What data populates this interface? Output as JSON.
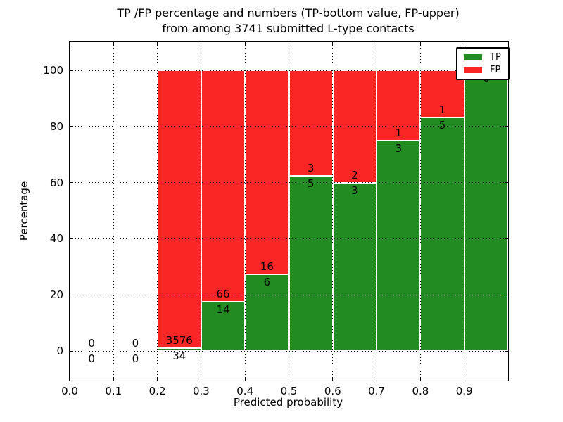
{
  "figure": {
    "title_line1": "TP /FP percentage and numbers (TP-bottom value, FP-upper)",
    "title_line2": "from among 3741 submitted L-type contacts",
    "background_color": "#ffffff"
  },
  "legend": {
    "position": "upper-right",
    "items": [
      {
        "label": "TP",
        "color": "#228b22"
      },
      {
        "label": "FP",
        "color": "#fa2525"
      }
    ]
  },
  "chart_data": {
    "type": "bar",
    "variant": "stacked-percentage",
    "title": "TP /FP percentage and numbers (TP-bottom value, FP-upper) from among 3741 submitted L-type contacts",
    "xlabel": "Predicted probability",
    "ylabel": "Percentage",
    "x_tick_labels": [
      "0.0",
      "0.1",
      "0.2",
      "0.3",
      "0.4",
      "0.5",
      "0.6",
      "0.7",
      "0.8",
      "0.9"
    ],
    "y_tick_values": [
      0,
      20,
      40,
      60,
      80,
      100
    ],
    "xlim": [
      0.0,
      1.0
    ],
    "ylim": [
      -11,
      110
    ],
    "grid": true,
    "grid_style": "dotted",
    "bar_edge_color": "#ffffff",
    "bin_width": 0.1,
    "total_submitted": 3741,
    "categories": [
      "0.0-0.1",
      "0.1-0.2",
      "0.2-0.3",
      "0.3-0.4",
      "0.4-0.5",
      "0.5-0.6",
      "0.6-0.7",
      "0.7-0.8",
      "0.8-0.9",
      "0.9-1.0"
    ],
    "series": [
      {
        "name": "TP",
        "color": "#228b22",
        "values": [
          0,
          0,
          34,
          14,
          6,
          5,
          3,
          3,
          5,
          6
        ]
      },
      {
        "name": "FP",
        "color": "#fa2525",
        "values": [
          0,
          0,
          3576,
          66,
          16,
          3,
          2,
          1,
          1,
          0
        ]
      }
    ],
    "tp_percent_by_bin": [
      null,
      null,
      0.94,
      17.5,
      27.27,
      62.5,
      60.0,
      75.0,
      83.33,
      100.0
    ]
  }
}
